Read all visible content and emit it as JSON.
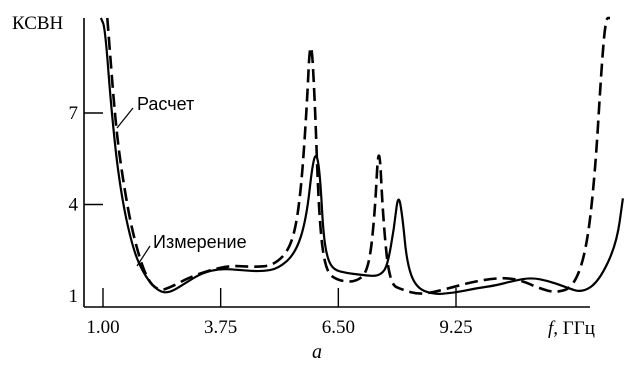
{
  "chart_data": {
    "type": "line",
    "ylabel": "КСВН",
    "xlabel_var": "f",
    "xlabel_unit": ", ГГц",
    "subcaption": "а",
    "x_ticks": [
      "1.00",
      "3.75",
      "6.50",
      "9.25"
    ],
    "x_tick_values": [
      1.0,
      3.75,
      6.5,
      9.25
    ],
    "y_ticks": [
      "1",
      "4",
      "7"
    ],
    "y_tick_values": [
      1,
      4,
      7
    ],
    "xlim": [
      0.6,
      13.7
    ],
    "ylim": [
      1,
      10.5
    ],
    "annotations": [
      {
        "text": "Расчет",
        "series": "calculated"
      },
      {
        "text": "Измерение",
        "series": "measured"
      }
    ],
    "series": [
      {
        "id": "calculated",
        "style": "dashed",
        "x": [
          1.1,
          1.3,
          1.5,
          1.7,
          2.0,
          2.3,
          2.6,
          3.0,
          3.5,
          4.0,
          4.5,
          5.0,
          5.4,
          5.6,
          5.75,
          5.85,
          5.95,
          6.05,
          6.2,
          6.5,
          6.9,
          7.2,
          7.35,
          7.45,
          7.55,
          7.7,
          8.0,
          8.4,
          8.8,
          9.2,
          9.6,
          10.0,
          10.4,
          10.8,
          11.2,
          11.6,
          12.0,
          12.3,
          12.5,
          12.65,
          12.75,
          12.85
        ],
        "y": [
          10.5,
          6.5,
          4.5,
          3.0,
          1.6,
          1.15,
          1.3,
          1.6,
          1.85,
          2.0,
          1.95,
          2.0,
          2.6,
          4.0,
          6.8,
          9.8,
          7.5,
          3.5,
          1.8,
          1.5,
          1.45,
          1.8,
          3.6,
          6.3,
          3.4,
          1.4,
          1.2,
          1.05,
          1.15,
          1.3,
          1.45,
          1.55,
          1.6,
          1.5,
          1.25,
          1.1,
          1.3,
          2.5,
          5.0,
          8.5,
          10.5,
          10.5
        ]
      },
      {
        "id": "measured",
        "style": "solid",
        "x": [
          0.95,
          1.05,
          1.2,
          1.4,
          1.7,
          2.0,
          2.3,
          2.55,
          2.9,
          3.3,
          3.75,
          4.2,
          4.7,
          5.1,
          5.5,
          5.75,
          5.9,
          6.0,
          6.08,
          6.15,
          6.25,
          6.4,
          6.7,
          7.0,
          7.3,
          7.5,
          7.65,
          7.8,
          7.9,
          8.0,
          8.1,
          8.3,
          8.7,
          9.2,
          9.7,
          10.2,
          10.6,
          11.0,
          11.4,
          11.8,
          12.2,
          12.6,
          13.0,
          13.15
        ],
        "y": [
          10.5,
          9.8,
          7.0,
          4.5,
          2.5,
          1.6,
          1.15,
          1.1,
          1.4,
          1.75,
          1.9,
          1.85,
          1.8,
          1.9,
          2.4,
          3.5,
          5.4,
          5.7,
          4.8,
          3.0,
          2.2,
          1.85,
          1.75,
          1.7,
          1.65,
          1.7,
          2.0,
          3.2,
          4.4,
          3.6,
          2.1,
          1.3,
          1.05,
          1.1,
          1.25,
          1.35,
          1.5,
          1.6,
          1.5,
          1.3,
          1.1,
          1.5,
          2.7,
          4.2
        ]
      }
    ]
  }
}
